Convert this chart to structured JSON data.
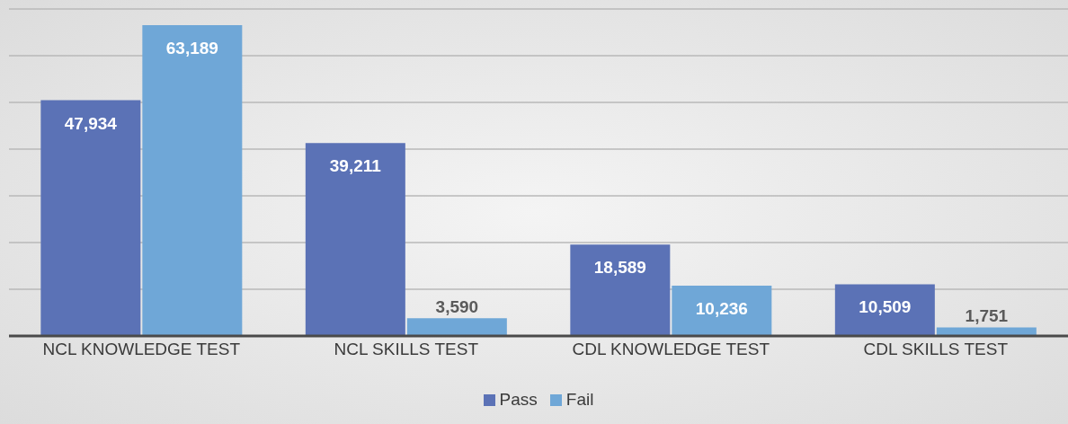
{
  "chart_data": {
    "type": "bar",
    "categories": [
      "NCL KNOWLEDGE TEST",
      "NCL SKILLS TEST",
      "CDL KNOWLEDGE TEST",
      "CDL SKILLS TEST"
    ],
    "series": [
      {
        "name": "Pass",
        "color": "#5b72b6",
        "values": [
          47934,
          39211,
          18589,
          10509
        ],
        "value_labels": [
          "47,934",
          "39,211",
          "18,589",
          "10,509"
        ]
      },
      {
        "name": "Fail",
        "color": "#6fa7d7",
        "values": [
          63189,
          3590,
          10236,
          1751
        ],
        "value_labels": [
          "63,189",
          "3,590",
          "10,236",
          "1,751"
        ]
      }
    ],
    "tick_labels": "x",
    "grid": "y",
    "legend": "bottom"
  }
}
